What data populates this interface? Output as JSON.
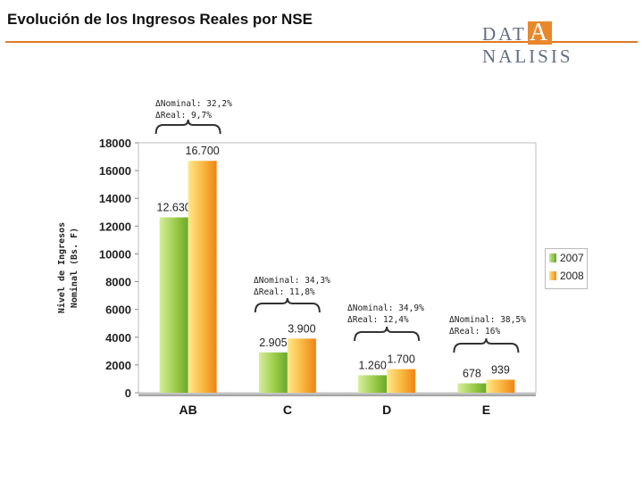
{
  "title": "Evolución de los Ingresos Reales por NSE",
  "logo": {
    "pre": "DAT",
    "big": "A",
    "post": "NALISIS"
  },
  "colors": {
    "s2007": "#8cc63f",
    "s2008": "#f5a623",
    "rule": "#e07a2a",
    "grid_bg": "#ffffff"
  },
  "chart_data": {
    "type": "bar",
    "categories": [
      "AB",
      "C",
      "D",
      "E"
    ],
    "series": [
      {
        "name": "2007",
        "values": [
          12630,
          2905,
          1260,
          678
        ],
        "labels": [
          "12.630",
          "2.905",
          "1.260",
          "678"
        ]
      },
      {
        "name": "2008",
        "values": [
          16700,
          3900,
          1700,
          939
        ],
        "labels": [
          "16.700",
          "3.900",
          "1.700",
          "939"
        ]
      }
    ],
    "ylim": [
      0,
      18000
    ],
    "yticks": [
      0,
      2000,
      4000,
      6000,
      8000,
      10000,
      12000,
      14000,
      16000,
      18000
    ],
    "ylabel_line1": "Nivel de Ingresos",
    "ylabel_line2": "Nominal (Bs. F)",
    "legend_position": "right"
  },
  "annotations": [
    {
      "nominal": "ΔNominal: 32,2%",
      "real": "ΔReal: 9,7%"
    },
    {
      "nominal": "ΔNominal: 34,3%",
      "real": "ΔReal: 11,8%"
    },
    {
      "nominal": "ΔNominal: 34,9%",
      "real": "ΔReal: 12,4%"
    },
    {
      "nominal": "ΔNominal: 38,5%",
      "real": "ΔReal: 16%"
    }
  ]
}
